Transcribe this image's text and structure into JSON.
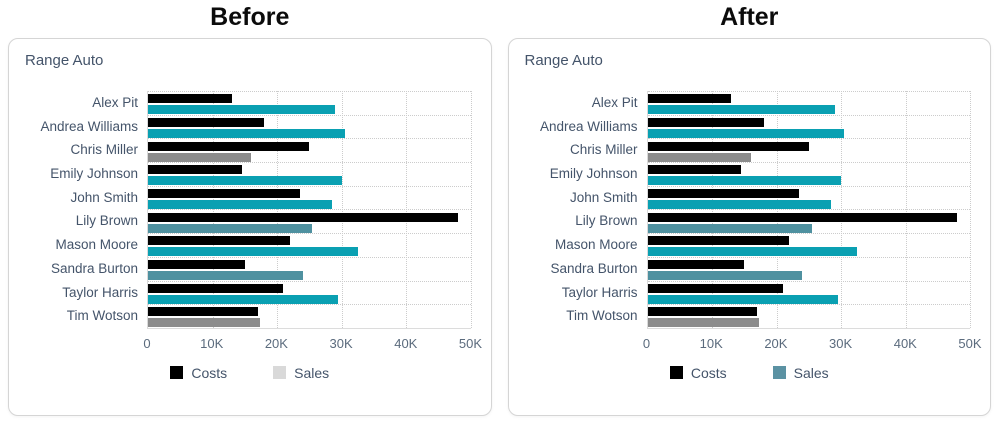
{
  "panels": [
    {
      "header": "Before",
      "card_title": "Range Auto",
      "legend": [
        {
          "label": "Costs",
          "color": "#000000"
        },
        {
          "label": "Sales",
          "color": "#d9d9d9"
        }
      ]
    },
    {
      "header": "After",
      "card_title": "Range Auto",
      "legend": [
        {
          "label": "Costs",
          "color": "#000000"
        },
        {
          "label": "Sales",
          "color": "#5b92a3"
        }
      ]
    }
  ],
  "chart_data": [
    {
      "type": "bar",
      "orientation": "horizontal",
      "title": "Range Auto",
      "categories": [
        "Alex Pit",
        "Andrea Williams",
        "Chris Miller",
        "Emily Johnson",
        "John Smith",
        "Lily Brown",
        "Mason Moore",
        "Sandra Burton",
        "Taylor Harris",
        "Tim Wotson"
      ],
      "series": [
        {
          "name": "Costs",
          "color": "#000000",
          "values": [
            13000,
            18000,
            25000,
            14500,
            23500,
            48000,
            22000,
            15000,
            21000,
            17000
          ]
        },
        {
          "name": "Sales",
          "color": "#0aa0b2",
          "point_colors": [
            "#0aa0b2",
            "#0aa0b2",
            "#8c8c8c",
            "#0aa0b2",
            "#0aa0b2",
            "#4f91a0",
            "#0aa0b2",
            "#4f91a0",
            "#0aa0b2",
            "#8c8c8c"
          ],
          "values": [
            29000,
            30500,
            16000,
            30000,
            28500,
            25500,
            32500,
            24000,
            29500,
            17300
          ]
        }
      ],
      "xlim": [
        0,
        50000
      ],
      "x_tick_labels": [
        "0",
        "10K",
        "20K",
        "30K",
        "40K",
        "50K"
      ],
      "xlabel": "",
      "ylabel": "",
      "grid": "dotted",
      "legend_position": "bottom"
    },
    {
      "type": "bar",
      "orientation": "horizontal",
      "title": "Range Auto",
      "categories": [
        "Alex Pit",
        "Andrea Williams",
        "Chris Miller",
        "Emily Johnson",
        "John Smith",
        "Lily Brown",
        "Mason Moore",
        "Sandra Burton",
        "Taylor Harris",
        "Tim Wotson"
      ],
      "series": [
        {
          "name": "Costs",
          "color": "#000000",
          "values": [
            13000,
            18000,
            25000,
            14500,
            23500,
            48000,
            22000,
            15000,
            21000,
            17000
          ]
        },
        {
          "name": "Sales",
          "color": "#0aa0b2",
          "point_colors": [
            "#0aa0b2",
            "#0aa0b2",
            "#8c8c8c",
            "#0aa0b2",
            "#0aa0b2",
            "#4f91a0",
            "#0aa0b2",
            "#4f91a0",
            "#0aa0b2",
            "#8c8c8c"
          ],
          "values": [
            29000,
            30500,
            16000,
            30000,
            28500,
            25500,
            32500,
            24000,
            29500,
            17300
          ]
        }
      ],
      "xlim": [
        0,
        50000
      ],
      "x_tick_labels": [
        "0",
        "10K",
        "20K",
        "30K",
        "40K",
        "50K"
      ],
      "xlabel": "",
      "ylabel": "",
      "grid": "dotted",
      "legend_position": "bottom"
    }
  ]
}
